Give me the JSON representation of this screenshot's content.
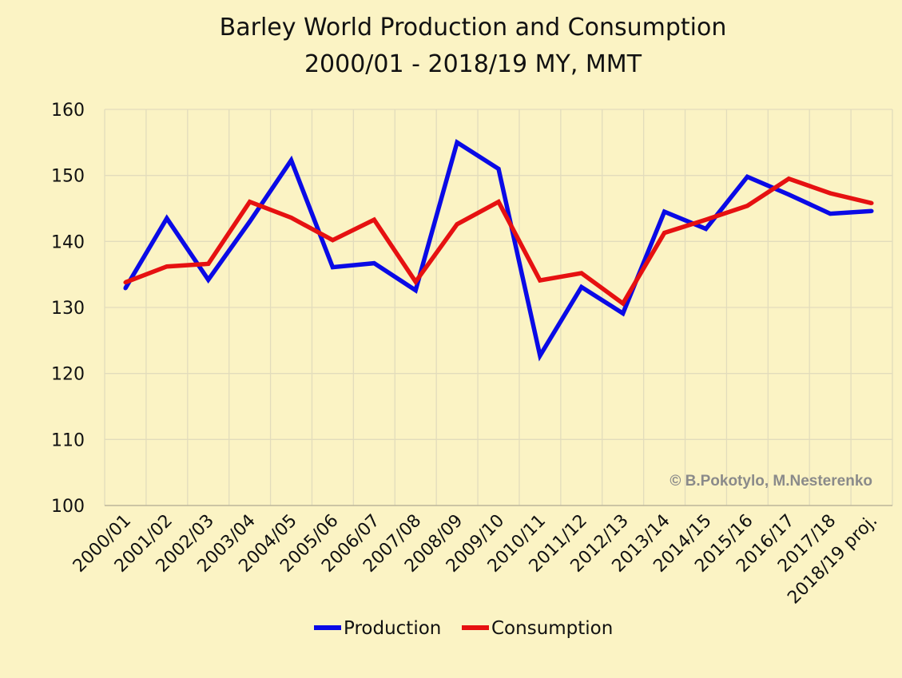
{
  "chart_data": {
    "type": "line",
    "title": "Barley World Production and Consumption",
    "subtitle": "2000/01 - 2018/19 MY, MMT",
    "xlabel": "",
    "ylabel": "",
    "ylim": [
      100,
      160
    ],
    "yticks": [
      100,
      110,
      120,
      130,
      140,
      150,
      160
    ],
    "grid": true,
    "legend_position": "bottom",
    "categories": [
      "2000/01",
      "2001/02",
      "2002/03",
      "2003/04",
      "2004/05",
      "2005/06",
      "2006/07",
      "2007/08",
      "2008/09",
      "2009/10",
      "2010/11",
      "2011/12",
      "2012/13",
      "2013/14",
      "2014/15",
      "2015/16",
      "2016/17",
      "2017/18",
      "2018/19 proj."
    ],
    "series": [
      {
        "name": "Production",
        "color": "#0a0ae6",
        "values": [
          132.9,
          143.5,
          134.2,
          143.0,
          152.3,
          136.1,
          136.7,
          132.6,
          155.0,
          151.0,
          122.7,
          133.1,
          129.1,
          144.5,
          141.9,
          149.8,
          147.1,
          144.2,
          144.6
        ]
      },
      {
        "name": "Consumption",
        "color": "#e61111",
        "values": [
          133.8,
          136.2,
          136.6,
          146.0,
          143.6,
          140.2,
          143.3,
          133.9,
          142.6,
          146.0,
          134.1,
          135.2,
          130.6,
          141.3,
          143.3,
          145.4,
          149.5,
          147.3,
          145.8
        ]
      }
    ],
    "annotation": "© B.Pokotylo, M.Nesterenko"
  }
}
